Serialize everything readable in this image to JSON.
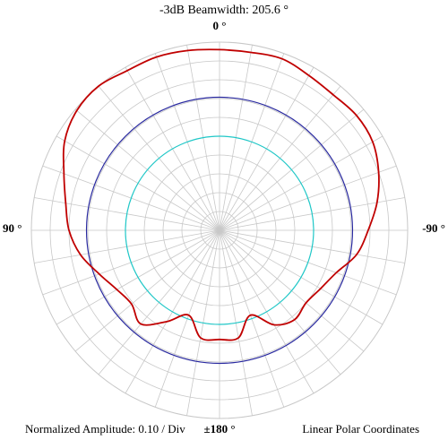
{
  "header": {
    "beamwidth_label": "-3dB Beamwidth:  205.6 °"
  },
  "footer": {
    "amplitude_label": "Normalized Amplitude:  0.10 / Div",
    "coords_label": "Linear Polar Coordinates"
  },
  "chart_data": {
    "type": "polar-line",
    "title": "-3dB Beamwidth:  205.6 °",
    "angle_labels": {
      "top": "0 °",
      "left": "90 °",
      "right": "-90 °",
      "bottom": "±180 °"
    },
    "radial_scale": "Normalized Amplitude:  0.10 / Div",
    "radial_range": [
      0,
      1.0
    ],
    "radial_divisions": 10,
    "angular_grid_step_deg": 10,
    "grid": true,
    "colors": {
      "grid": "#c8c8c8",
      "pattern": "#c00000",
      "half_power": "#2a2aa0",
      "reference": "#20c8c8"
    },
    "reference_circles": [
      {
        "radius": 0.707,
        "color": "#2a2aa0"
      },
      {
        "radius": 0.5,
        "color": "#20c8c8"
      }
    ],
    "series": [
      {
        "angle_deg": [
          0,
          10,
          20,
          30,
          40,
          50,
          60,
          70,
          80,
          90,
          100,
          110,
          120,
          130,
          140,
          150,
          160,
          170,
          180,
          190,
          200,
          210,
          220,
          230,
          240,
          250,
          260,
          270,
          280,
          290,
          300,
          310,
          320,
          330,
          340,
          350,
          360
        ],
        "amplitude": [
          0.96,
          0.97,
          0.98,
          0.98,
          1.0,
          0.99,
          0.95,
          0.88,
          0.83,
          0.8,
          0.75,
          0.68,
          0.63,
          0.61,
          0.65,
          0.56,
          0.48,
          0.58,
          0.58,
          0.58,
          0.48,
          0.58,
          0.62,
          0.6,
          0.62,
          0.66,
          0.74,
          0.79,
          0.85,
          0.9,
          0.94,
          0.95,
          0.94,
          0.95,
          0.97,
          0.96,
          0.96
        ]
      }
    ]
  }
}
